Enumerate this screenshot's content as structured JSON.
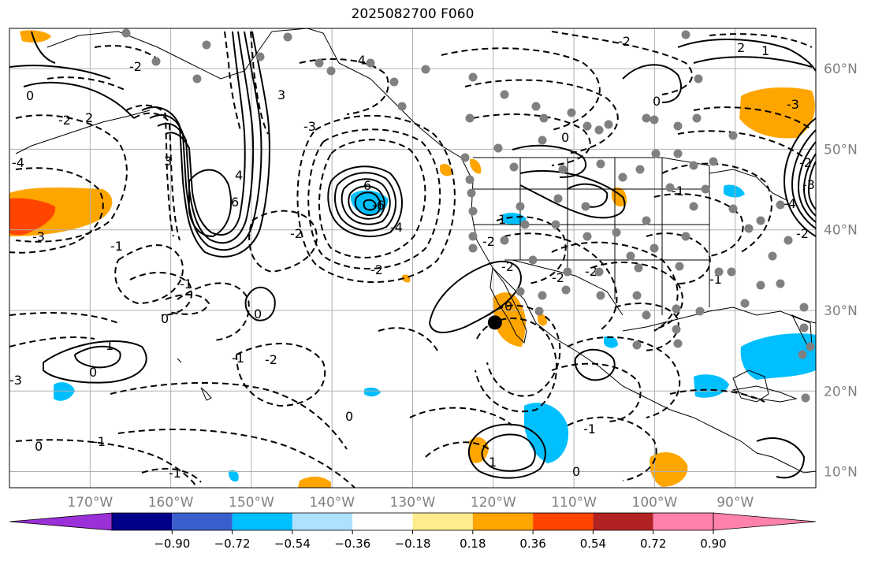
{
  "title": "2025082700 F060",
  "map": {
    "lon_ticks": [
      {
        "label": "170°W",
        "lon": -170
      },
      {
        "label": "160°W",
        "lon": -160
      },
      {
        "label": "150°W",
        "lon": -150
      },
      {
        "label": "140°W",
        "lon": -140
      },
      {
        "label": "130°W",
        "lon": -130
      },
      {
        "label": "120°W",
        "lon": -120
      },
      {
        "label": "110°W",
        "lon": -110
      },
      {
        "label": "100°W",
        "lon": -100
      },
      {
        "label": "90°W",
        "lon": -90
      }
    ],
    "lat_ticks": [
      {
        "label": "60°N",
        "lat": 60
      },
      {
        "label": "50°N",
        "lat": 50
      },
      {
        "label": "40°N",
        "lat": 40
      },
      {
        "label": "30°N",
        "lat": 30
      },
      {
        "label": "20°N",
        "lat": 20
      },
      {
        "label": "10°N",
        "lat": 10
      }
    ],
    "lon_range": [
      -180,
      -80
    ],
    "lat_range": [
      8,
      65
    ],
    "grid": true,
    "storm_marker": {
      "lon": -119.8,
      "lat": 28.5
    },
    "contour_labels": [
      "-4",
      "-2",
      "2",
      "0",
      "-2",
      "-4",
      "3",
      "-3",
      "6",
      "6",
      "-4",
      "-6",
      "-3",
      "3",
      "4",
      "-2",
      "-2",
      "-1",
      "-1",
      "0",
      "-1",
      "0",
      "1",
      "0",
      "0",
      "-2",
      "-3",
      "-1",
      "0",
      "-1",
      "-1",
      "-2",
      "-2",
      "-2",
      "1",
      "0",
      "0",
      "-1",
      "-1",
      "1",
      "2",
      "-2",
      "1",
      "-3",
      "-4",
      "-2",
      "-2",
      "-3",
      "0",
      "-2",
      "0"
    ]
  },
  "colorbar": {
    "ticks": [
      "−0.90",
      "−0.72",
      "−0.54",
      "−0.36",
      "−0.18",
      "0.18",
      "0.36",
      "0.54",
      "0.72",
      "0.90"
    ],
    "colors": [
      "#9b30d9",
      "#00008b",
      "#3a5fcd",
      "#00bfff",
      "#afe1ff",
      "#ffffff",
      "#ffec8b",
      "#ffa500",
      "#ff4500",
      "#b22222",
      "#ff82ab",
      "#ff82ab"
    ]
  }
}
